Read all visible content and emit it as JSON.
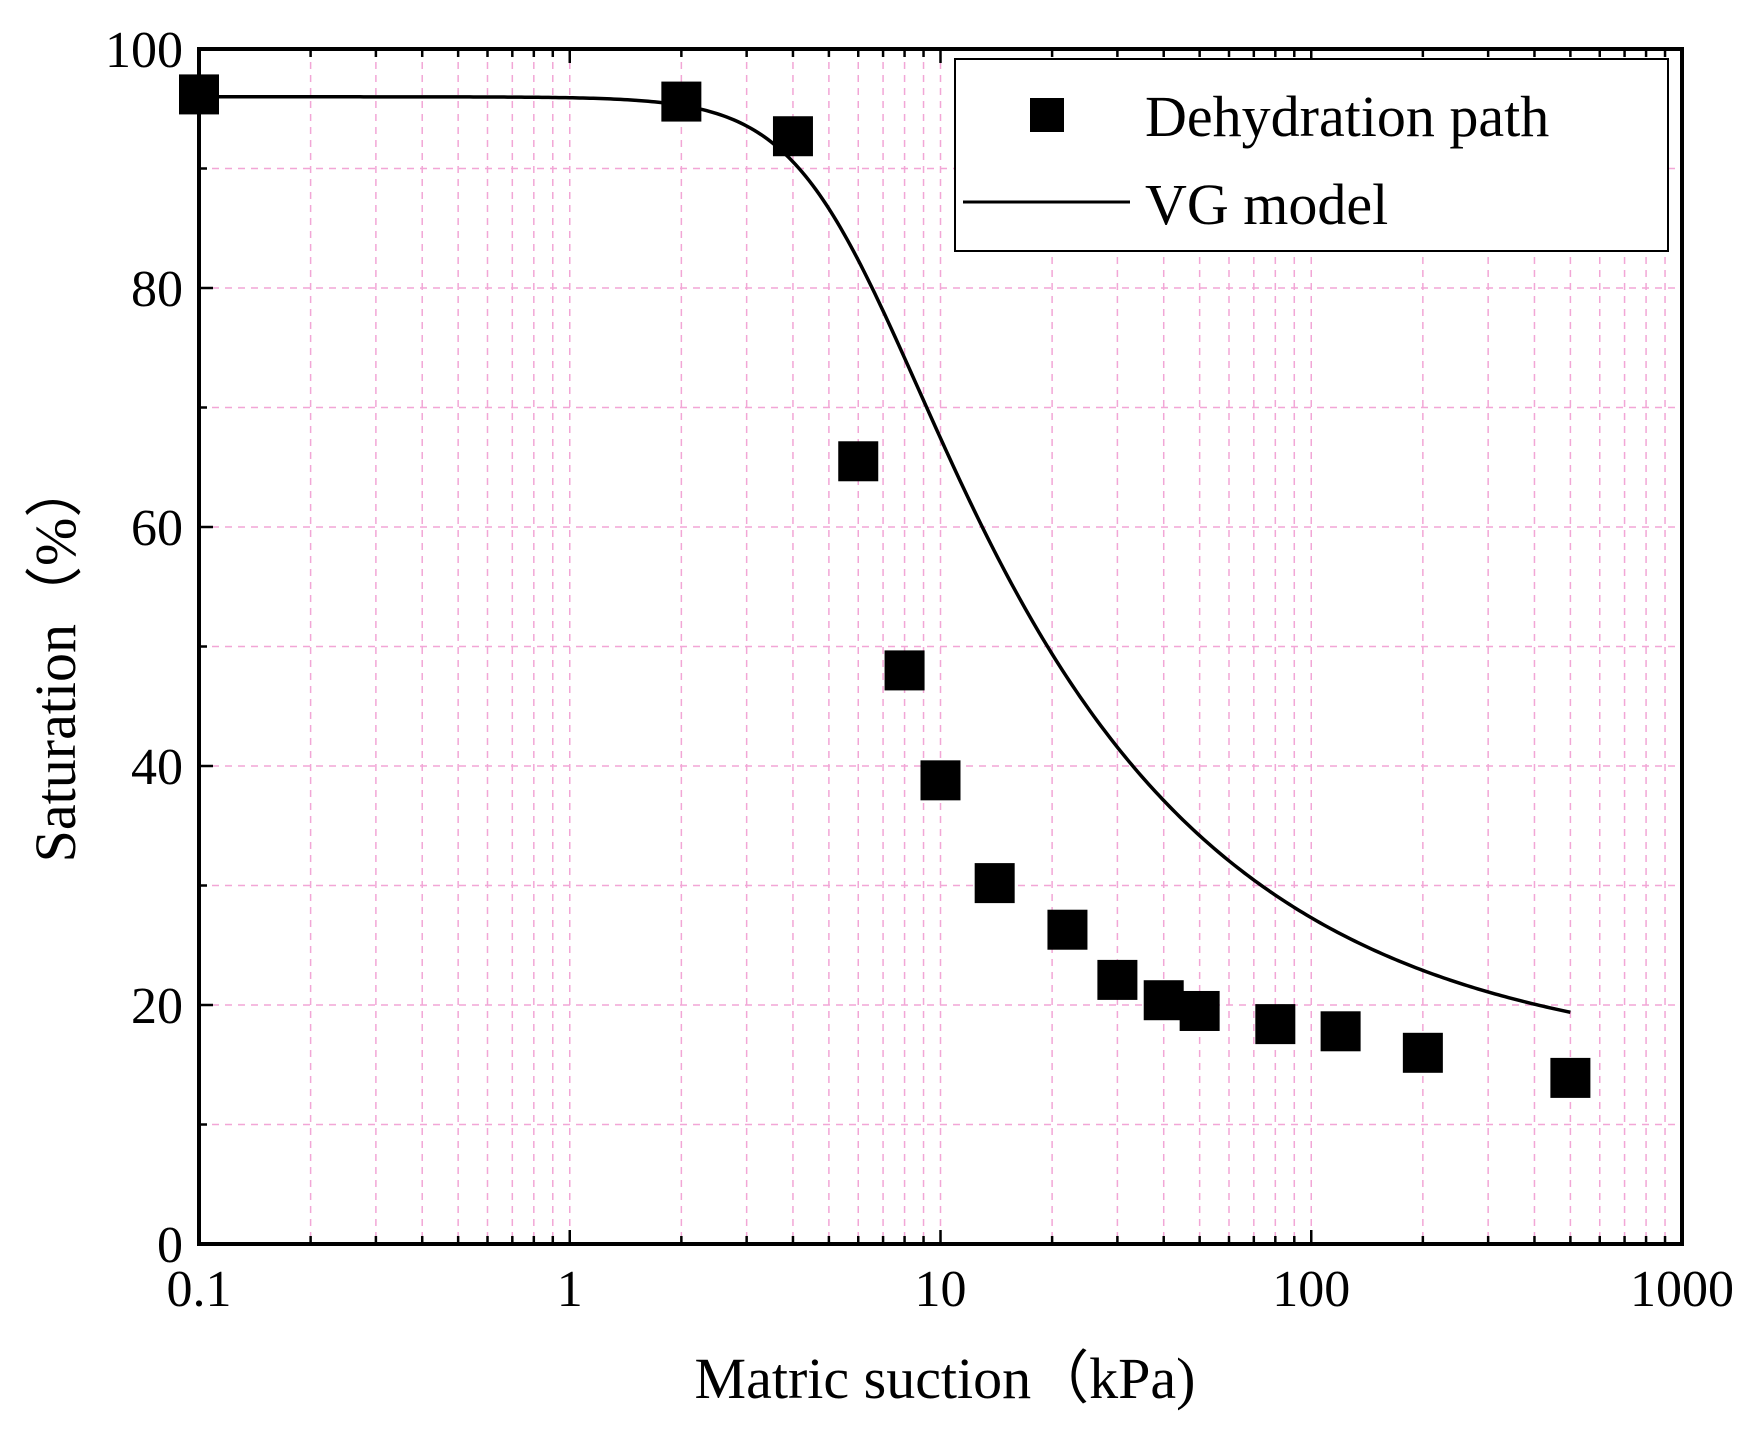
{
  "chart_data": {
    "type": "scatter",
    "title": "",
    "xlabel": "Matric suction（kPa)",
    "ylabel": "Saturation（%）",
    "xscale": "log",
    "xlim": [
      0.1,
      1000
    ],
    "ylim": [
      0,
      100
    ],
    "x_ticks": [
      0.1,
      1,
      10,
      100,
      1000
    ],
    "x_tick_labels": [
      "0.1",
      "1",
      "10",
      "100",
      "1000"
    ],
    "y_ticks": [
      0,
      20,
      40,
      60,
      80,
      100
    ],
    "y_tick_labels": [
      "0",
      "20",
      "40",
      "60",
      "80",
      "100"
    ],
    "grid": true,
    "grid_color": "#f2a6d6",
    "legend_position": "top-right",
    "series": [
      {
        "name": "Dehydration path",
        "kind": "markers",
        "marker": "square",
        "color": "#000000",
        "x": [
          0.1,
          2,
          4,
          6,
          8,
          10,
          14,
          22,
          30,
          40,
          50,
          80,
          120,
          200,
          500
        ],
        "y": [
          96.2,
          95.6,
          92.7,
          65.5,
          48.0,
          38.8,
          30.2,
          26.3,
          22.1,
          20.4,
          19.5,
          18.4,
          17.8,
          16.0,
          13.9
        ]
      },
      {
        "name": "VG model",
        "kind": "line",
        "color": "#000000",
        "model": {
          "theta_r": 15.0,
          "theta_s": 96.0,
          "alpha": 0.19,
          "n": 3.2,
          "m": 0.2,
          "x_range": [
            0.1,
            500
          ]
        }
      }
    ]
  }
}
